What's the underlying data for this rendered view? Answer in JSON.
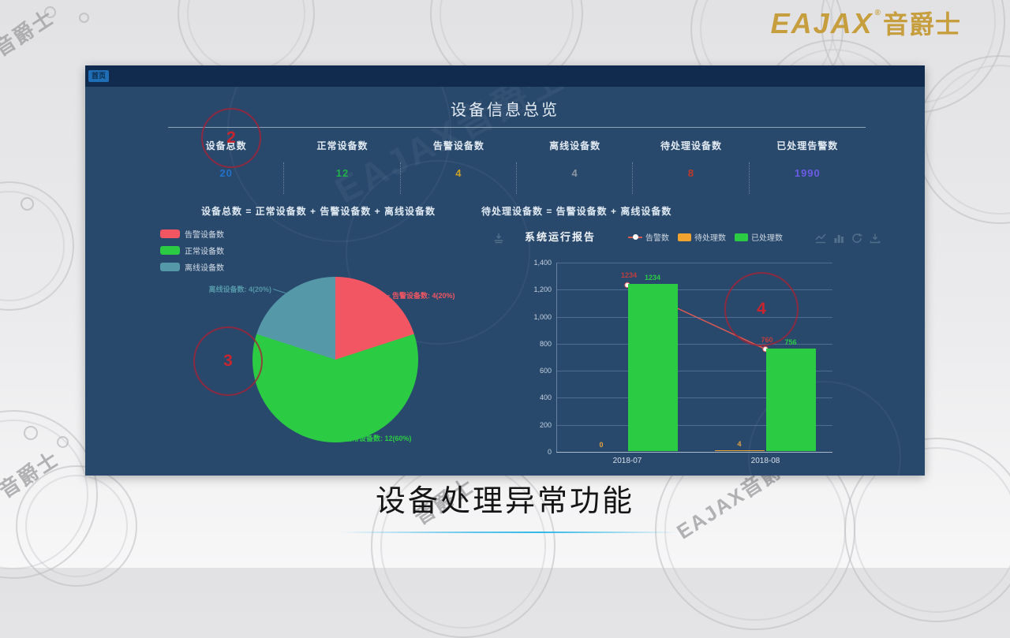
{
  "watermark": {
    "short": "音爵士",
    "full": "EAJAX音爵士"
  },
  "logo": {
    "wordmark": "EAJAX",
    "registered": "®",
    "suffix": "音爵士"
  },
  "caption": "设备处理异常功能",
  "annotation_color": "#c8252f",
  "annotations": [
    {
      "label": "2"
    },
    {
      "label": "3"
    },
    {
      "label": "4"
    }
  ],
  "dashboard": {
    "nav_tab": "首页",
    "title": "设备信息总览",
    "stats": [
      {
        "label": "设备总数",
        "value": "20",
        "color": "#2472c8"
      },
      {
        "label": "正常设备数",
        "value": "12",
        "color": "#21b24b"
      },
      {
        "label": "告警设备数",
        "value": "4",
        "color": "#c9a227"
      },
      {
        "label": "离线设备数",
        "value": "4",
        "color": "#8a97a0"
      },
      {
        "label": "待处理设备数",
        "value": "8",
        "color": "#c0392b"
      },
      {
        "label": "已处理告警数",
        "value": "1990",
        "color": "#6c5ce7"
      }
    ],
    "formulas": [
      "设备总数  =  正常设备数  +  告警设备数  +  离线设备数",
      "待处理设备数  =  告警设备数  +  离线设备数"
    ]
  },
  "chart_data": [
    {
      "type": "pie",
      "legend": [
        "告警设备数",
        "正常设备数",
        "离线设备数"
      ],
      "legend_position": "top-left",
      "slices": [
        {
          "name": "告警设备数",
          "value": 4,
          "percent": 20,
          "color": "#f25662",
          "label": "告警设备数: 4(20%)"
        },
        {
          "name": "正常设备数",
          "value": 12,
          "percent": 60,
          "color": "#2bcc44",
          "label": "正常设备数: 12(60%)"
        },
        {
          "name": "离线设备数",
          "value": 4,
          "percent": 20,
          "color": "#5598a8",
          "label": "离线设备数: 4(20%)"
        }
      ]
    },
    {
      "type": "bar",
      "title": "系统运行报告",
      "categories": [
        "2018-07",
        "2018-08"
      ],
      "series": [
        {
          "name": "告警数",
          "kind": "line",
          "color": "#dd5a52",
          "label_color": "#c03e3e",
          "values": [
            1234,
            760
          ]
        },
        {
          "name": "待处理数",
          "kind": "bar",
          "color": "#f0a32f",
          "label_color": "#e8a33d",
          "values": [
            0,
            4
          ]
        },
        {
          "name": "已处理数",
          "kind": "bar",
          "color": "#2bcc44",
          "label_color": "#2bcc44",
          "values": [
            1234,
            756
          ]
        }
      ],
      "ylim": [
        0,
        1400
      ],
      "yticks": [
        "0",
        "200",
        "400",
        "600",
        "800",
        "1,000",
        "1,200",
        "1,400"
      ],
      "grid": true,
      "legend_position": "top",
      "toolbar_icons": [
        "line-chart",
        "bar-chart",
        "refresh",
        "download"
      ]
    }
  ]
}
